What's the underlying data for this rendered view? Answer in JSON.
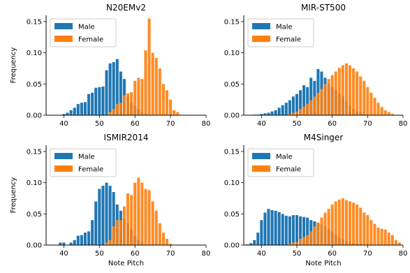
{
  "colors": {
    "male": "#1f77b4",
    "female": "#ff7f0e",
    "legend_border": "#cccccc"
  },
  "chart_data": [
    {
      "type": "bar",
      "title": "N20EMv2",
      "xlabel": "",
      "ylabel": "Frequency",
      "xlim": [
        35,
        80
      ],
      "ylim": [
        0,
        0.16
      ],
      "xticks": [
        "40",
        "50",
        "60",
        "70",
        "80"
      ],
      "yticks": [
        "0.00",
        "0.05",
        "0.10",
        "0.15"
      ],
      "legend": "top-left",
      "series": [
        {
          "name": "Male",
          "x": [
            40,
            41,
            42,
            43,
            44,
            45,
            46,
            47,
            48,
            49,
            50,
            51,
            52,
            53,
            54,
            55,
            56,
            57,
            58,
            59,
            60,
            61,
            62,
            63,
            64
          ],
          "values": [
            0.002,
            0.004,
            0.008,
            0.012,
            0.018,
            0.02,
            0.021,
            0.034,
            0.036,
            0.044,
            0.045,
            0.046,
            0.072,
            0.083,
            0.085,
            0.09,
            0.07,
            0.058,
            0.03,
            0.02,
            0.015,
            0.01,
            0.005,
            0.003,
            0.001
          ]
        },
        {
          "name": "Female",
          "x": [
            53,
            54,
            55,
            56,
            57,
            58,
            59,
            60,
            61,
            62,
            63,
            64,
            65,
            66,
            67,
            68,
            69,
            70,
            71,
            72
          ],
          "values": [
            0.005,
            0.01,
            0.018,
            0.02,
            0.032,
            0.035,
            0.037,
            0.055,
            0.06,
            0.058,
            0.104,
            0.155,
            0.1,
            0.092,
            0.075,
            0.05,
            0.04,
            0.025,
            0.008,
            0.005
          ]
        }
      ]
    },
    {
      "type": "bar",
      "title": "MIR-ST500",
      "xlabel": "",
      "ylabel": "",
      "xlim": [
        35,
        80
      ],
      "ylim": [
        0,
        0.16
      ],
      "xticks": [
        "40",
        "50",
        "60",
        "70",
        "80"
      ],
      "yticks": [
        "0.00",
        "0.05",
        "0.10",
        "0.15"
      ],
      "legend": "top-left",
      "series": [
        {
          "name": "Male",
          "x": [
            38,
            39,
            40,
            41,
            42,
            43,
            44,
            45,
            46,
            47,
            48,
            49,
            50,
            51,
            52,
            53,
            54,
            55,
            56,
            57,
            58,
            59,
            60,
            61,
            62,
            63,
            64,
            65,
            66,
            67,
            68,
            69,
            70
          ],
          "values": [
            0.001,
            0.001,
            0.002,
            0.003,
            0.004,
            0.006,
            0.008,
            0.012,
            0.016,
            0.02,
            0.024,
            0.03,
            0.034,
            0.04,
            0.048,
            0.045,
            0.06,
            0.055,
            0.074,
            0.07,
            0.06,
            0.05,
            0.045,
            0.04,
            0.035,
            0.03,
            0.022,
            0.015,
            0.01,
            0.006,
            0.004,
            0.002,
            0.001
          ]
        },
        {
          "name": "Female",
          "x": [
            48,
            49,
            50,
            51,
            52,
            53,
            54,
            55,
            56,
            57,
            58,
            59,
            60,
            61,
            62,
            63,
            64,
            65,
            66,
            67,
            68,
            69,
            70,
            71,
            72,
            73,
            74,
            75,
            76,
            77
          ],
          "values": [
            0.002,
            0.004,
            0.006,
            0.01,
            0.014,
            0.018,
            0.024,
            0.03,
            0.036,
            0.042,
            0.05,
            0.058,
            0.064,
            0.07,
            0.076,
            0.08,
            0.083,
            0.08,
            0.075,
            0.07,
            0.062,
            0.055,
            0.045,
            0.036,
            0.028,
            0.02,
            0.013,
            0.008,
            0.005,
            0.002
          ]
        }
      ]
    },
    {
      "type": "bar",
      "title": "ISMIR2014",
      "xlabel": "Note Pitch",
      "ylabel": "Frequency",
      "xlim": [
        35,
        80
      ],
      "ylim": [
        0,
        0.16
      ],
      "xticks": [
        "40",
        "50",
        "60",
        "70",
        "80"
      ],
      "yticks": [
        "0.00",
        "0.05",
        "0.10",
        "0.15"
      ],
      "legend": "top-left",
      "series": [
        {
          "name": "Male",
          "x": [
            39,
            40,
            42,
            43,
            44,
            45,
            46,
            47,
            48,
            49,
            50,
            51,
            52,
            53,
            54,
            55,
            56,
            57,
            58,
            59,
            60,
            61,
            62
          ],
          "values": [
            0.004,
            0.004,
            0.004,
            0.008,
            0.015,
            0.016,
            0.02,
            0.022,
            0.04,
            0.07,
            0.09,
            0.095,
            0.1,
            0.095,
            0.085,
            0.065,
            0.055,
            0.042,
            0.035,
            0.025,
            0.015,
            0.008,
            0.004
          ]
        },
        {
          "name": "Female",
          "x": [
            52,
            53,
            54,
            55,
            56,
            57,
            58,
            59,
            60,
            61,
            62,
            63,
            64,
            65,
            66,
            67,
            68,
            69,
            70
          ],
          "values": [
            0.004,
            0.008,
            0.03,
            0.04,
            0.04,
            0.062,
            0.083,
            0.08,
            0.1,
            0.108,
            0.1,
            0.09,
            0.088,
            0.07,
            0.055,
            0.035,
            0.02,
            0.01,
            0.002
          ]
        }
      ]
    },
    {
      "type": "bar",
      "title": "M4Singer",
      "xlabel": "Note Pitch",
      "ylabel": "",
      "xlim": [
        35,
        80
      ],
      "ylim": [
        0,
        0.16
      ],
      "xticks": [
        "40",
        "50",
        "60",
        "70",
        "80"
      ],
      "yticks": [
        "0.00",
        "0.05",
        "0.10",
        "0.15"
      ],
      "legend": "top-left",
      "series": [
        {
          "name": "Male",
          "x": [
            36,
            37,
            38,
            39,
            40,
            41,
            42,
            43,
            44,
            45,
            46,
            47,
            48,
            49,
            50,
            51,
            52,
            53,
            54,
            55,
            56,
            57,
            58,
            59,
            60,
            61,
            62,
            63,
            64,
            65,
            66,
            67,
            68
          ],
          "values": [
            0.001,
            0.003,
            0.008,
            0.02,
            0.04,
            0.052,
            0.058,
            0.056,
            0.055,
            0.053,
            0.05,
            0.047,
            0.046,
            0.048,
            0.048,
            0.046,
            0.045,
            0.044,
            0.04,
            0.038,
            0.035,
            0.033,
            0.03,
            0.026,
            0.022,
            0.016,
            0.012,
            0.009,
            0.006,
            0.004,
            0.003,
            0.002,
            0.001
          ]
        },
        {
          "name": "Female",
          "x": [
            48,
            49,
            50,
            51,
            52,
            53,
            54,
            55,
            56,
            57,
            58,
            59,
            60,
            61,
            62,
            63,
            64,
            65,
            66,
            67,
            68,
            69,
            70,
            71,
            72,
            73,
            74,
            75,
            76,
            77,
            78,
            79
          ],
          "values": [
            0.002,
            0.004,
            0.005,
            0.01,
            0.013,
            0.016,
            0.022,
            0.03,
            0.036,
            0.044,
            0.052,
            0.058,
            0.065,
            0.07,
            0.073,
            0.075,
            0.072,
            0.07,
            0.068,
            0.065,
            0.06,
            0.052,
            0.048,
            0.04,
            0.034,
            0.028,
            0.026,
            0.025,
            0.02,
            0.016,
            0.008,
            0.004
          ]
        }
      ]
    }
  ]
}
